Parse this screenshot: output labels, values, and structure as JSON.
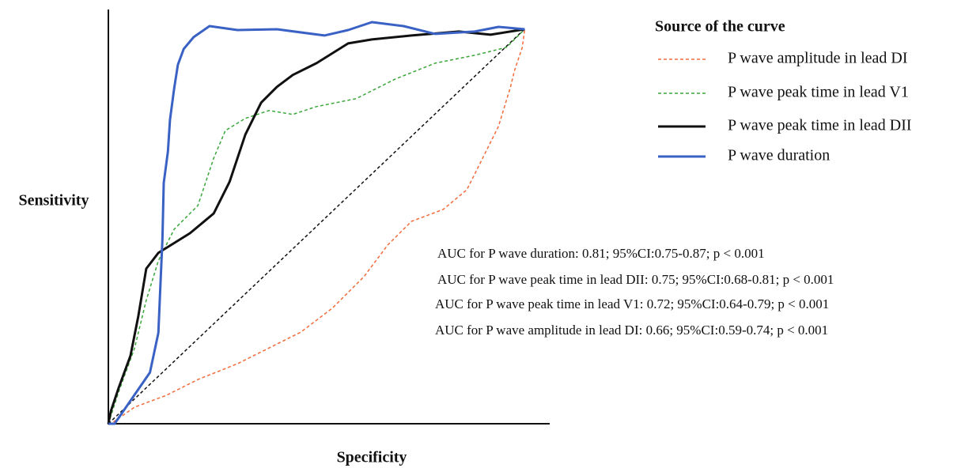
{
  "chart_data": {
    "type": "line",
    "x_label": "Specificity",
    "y_label": "Sensitivity",
    "xlim": [
      0,
      1.06
    ],
    "ylim": [
      0,
      1.05
    ],
    "legend_title": "Source of the curve",
    "legend": "upper right",
    "series": [
      {
        "name": "P wave amplitude in lead DI",
        "color": "#f26b3a",
        "linestyle": "dashed",
        "x": [
          0,
          0.006,
          0.063,
          0.139,
          0.215,
          0.31,
          0.405,
          0.462,
          0.538,
          0.614,
          0.671,
          0.728,
          0.804,
          0.861,
          0.899,
          0.937,
          0.966,
          0.975,
          0.994,
          1
        ],
        "values": [
          0,
          0,
          0.042,
          0.072,
          0.112,
          0.152,
          0.202,
          0.232,
          0.293,
          0.373,
          0.453,
          0.513,
          0.543,
          0.593,
          0.673,
          0.754,
          0.854,
          0.894,
          0.954,
          1
        ]
      },
      {
        "name": "P wave peak time in lead V1",
        "color": "#3aa63a",
        "linestyle": "dashed",
        "x": [
          0,
          0.025,
          0.063,
          0.091,
          0.12,
          0.158,
          0.215,
          0.253,
          0.281,
          0.329,
          0.386,
          0.443,
          0.5,
          0.595,
          0.69,
          0.785,
          0.88,
          0.956,
          1
        ],
        "values": [
          0,
          0.082,
          0.192,
          0.313,
          0.413,
          0.493,
          0.553,
          0.673,
          0.743,
          0.774,
          0.794,
          0.784,
          0.804,
          0.824,
          0.874,
          0.914,
          0.934,
          0.954,
          1
        ]
      },
      {
        "name": "P wave peak time in lead DII",
        "color": "#111111",
        "linestyle": "solid",
        "x": [
          0,
          0.006,
          0.025,
          0.053,
          0.072,
          0.091,
          0.12,
          0.196,
          0.253,
          0.291,
          0.329,
          0.367,
          0.405,
          0.443,
          0.5,
          0.576,
          0.633,
          0.728,
          0.842,
          0.918,
          1
        ],
        "values": [
          0,
          0.032,
          0.092,
          0.172,
          0.273,
          0.393,
          0.433,
          0.483,
          0.533,
          0.613,
          0.733,
          0.814,
          0.854,
          0.884,
          0.914,
          0.964,
          0.974,
          0.984,
          0.994,
          0.986,
          1
        ]
      },
      {
        "name": "P wave duration",
        "color": "#3a62c4",
        "linestyle": "solid",
        "x": [
          0,
          0.015,
          0.1,
          0.12,
          0.13,
          0.133,
          0.143,
          0.148,
          0.158,
          0.167,
          0.181,
          0.205,
          0.243,
          0.31,
          0.405,
          0.519,
          0.576,
          0.633,
          0.709,
          0.785,
          0.88,
          0.937,
          1
        ],
        "values": [
          0,
          0,
          0.13,
          0.23,
          0.47,
          0.61,
          0.69,
          0.77,
          0.85,
          0.91,
          0.95,
          0.98,
          1.008,
          0.998,
          1,
          0.984,
          0.998,
          1.018,
          1.008,
          0.988,
          0.994,
          1.006,
          1
        ]
      }
    ],
    "annotations": [
      "AUC for P wave duration: 0.81; 95%CI:0.75-0.87; p < 0.001",
      "AUC for P wave peak time in lead DII: 0.75; 95%CI:0.68-0.81; p < 0.001",
      "AUC for P wave peak time in lead V1: 0.72; 95%CI:0.64-0.79; p < 0.001",
      "AUC for P wave amplitude in lead DI: 0.66; 95%CI:0.59-0.74; p < 0.001"
    ]
  }
}
